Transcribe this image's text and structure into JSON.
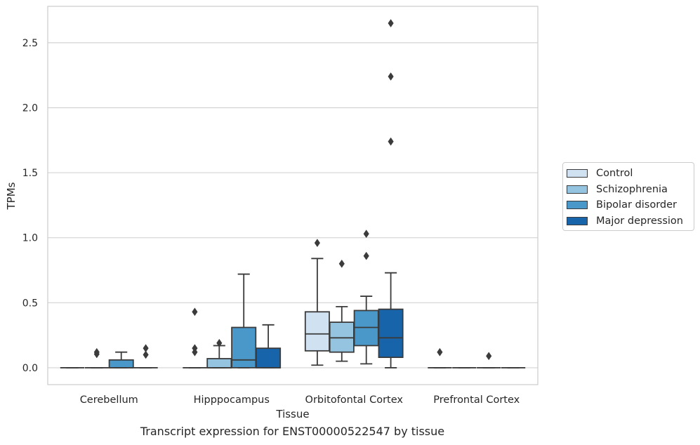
{
  "chart_data": {
    "type": "boxplot",
    "xlabel": "Tissue",
    "ylabel": "TPMs",
    "ylim": [
      -0.13,
      2.78
    ],
    "yticks": [
      0.0,
      0.5,
      1.0,
      1.5,
      2.0,
      2.5
    ],
    "ytick_labels": [
      "0.0",
      "0.5",
      "1.0",
      "1.5",
      "2.0",
      "2.5"
    ],
    "grid": true,
    "legend_position": "right",
    "categories": [
      "Cerebellum",
      "Hipppocampus",
      "Orbitofontal Cortex",
      "Prefrontal Cortex"
    ],
    "series": [
      {
        "name": "Control",
        "color": "#d0e1f2",
        "boxes": [
          {
            "whislo": 0.0,
            "q1": 0.0,
            "med": 0.0,
            "q3": 0.0,
            "whishi": 0.0,
            "fliers": []
          },
          {
            "whislo": 0.0,
            "q1": 0.0,
            "med": 0.0,
            "q3": 0.0,
            "whishi": 0.0,
            "fliers": [
              0.43,
              0.15,
              0.12
            ]
          },
          {
            "whislo": 0.02,
            "q1": 0.13,
            "med": 0.26,
            "q3": 0.43,
            "whishi": 0.84,
            "fliers": [
              0.96
            ]
          },
          {
            "whislo": 0.0,
            "q1": 0.0,
            "med": 0.0,
            "q3": 0.0,
            "whishi": 0.0,
            "fliers": [
              0.12
            ]
          }
        ]
      },
      {
        "name": "Schizophrenia",
        "color": "#94c4df",
        "boxes": [
          {
            "whislo": 0.0,
            "q1": 0.0,
            "med": 0.0,
            "q3": 0.0,
            "whishi": 0.0,
            "fliers": [
              0.12,
              0.105
            ]
          },
          {
            "whislo": 0.0,
            "q1": 0.0,
            "med": 0.0,
            "q3": 0.07,
            "whishi": 0.17,
            "fliers": [
              0.19
            ]
          },
          {
            "whislo": 0.05,
            "q1": 0.12,
            "med": 0.23,
            "q3": 0.35,
            "whishi": 0.47,
            "fliers": [
              0.8
            ]
          },
          {
            "whislo": 0.0,
            "q1": 0.0,
            "med": 0.0,
            "q3": 0.0,
            "whishi": 0.0,
            "fliers": []
          }
        ]
      },
      {
        "name": "Bipolar disorder",
        "color": "#4a98c9",
        "boxes": [
          {
            "whislo": 0.0,
            "q1": 0.0,
            "med": 0.0,
            "q3": 0.06,
            "whishi": 0.12,
            "fliers": []
          },
          {
            "whislo": 0.0,
            "q1": 0.0,
            "med": 0.06,
            "q3": 0.31,
            "whishi": 0.72,
            "fliers": []
          },
          {
            "whislo": 0.03,
            "q1": 0.17,
            "med": 0.31,
            "q3": 0.44,
            "whishi": 0.55,
            "fliers": [
              1.03,
              0.86
            ]
          },
          {
            "whislo": 0.0,
            "q1": 0.0,
            "med": 0.0,
            "q3": 0.0,
            "whishi": 0.0,
            "fliers": [
              0.09
            ]
          }
        ]
      },
      {
        "name": "Major depression",
        "color": "#1764ab",
        "boxes": [
          {
            "whislo": 0.0,
            "q1": 0.0,
            "med": 0.0,
            "q3": 0.0,
            "whishi": 0.0,
            "fliers": [
              0.15,
              0.1
            ]
          },
          {
            "whislo": 0.0,
            "q1": 0.0,
            "med": 0.0,
            "q3": 0.15,
            "whishi": 0.33,
            "fliers": []
          },
          {
            "whislo": 0.0,
            "q1": 0.08,
            "med": 0.23,
            "q3": 0.45,
            "whishi": 0.73,
            "fliers": [
              2.65,
              2.24,
              1.74
            ]
          },
          {
            "whislo": 0.0,
            "q1": 0.0,
            "med": 0.0,
            "q3": 0.0,
            "whishi": 0.0,
            "fliers": []
          }
        ]
      }
    ]
  },
  "legend": {
    "items": [
      {
        "label": "Control",
        "color": "#d0e1f2"
      },
      {
        "label": "Schizophrenia",
        "color": "#94c4df"
      },
      {
        "label": "Bipolar disorder",
        "color": "#4a98c9"
      },
      {
        "label": "Major depression",
        "color": "#1764ab"
      }
    ]
  },
  "caption": "Transcript expression for ENST00000522547 by tissue"
}
